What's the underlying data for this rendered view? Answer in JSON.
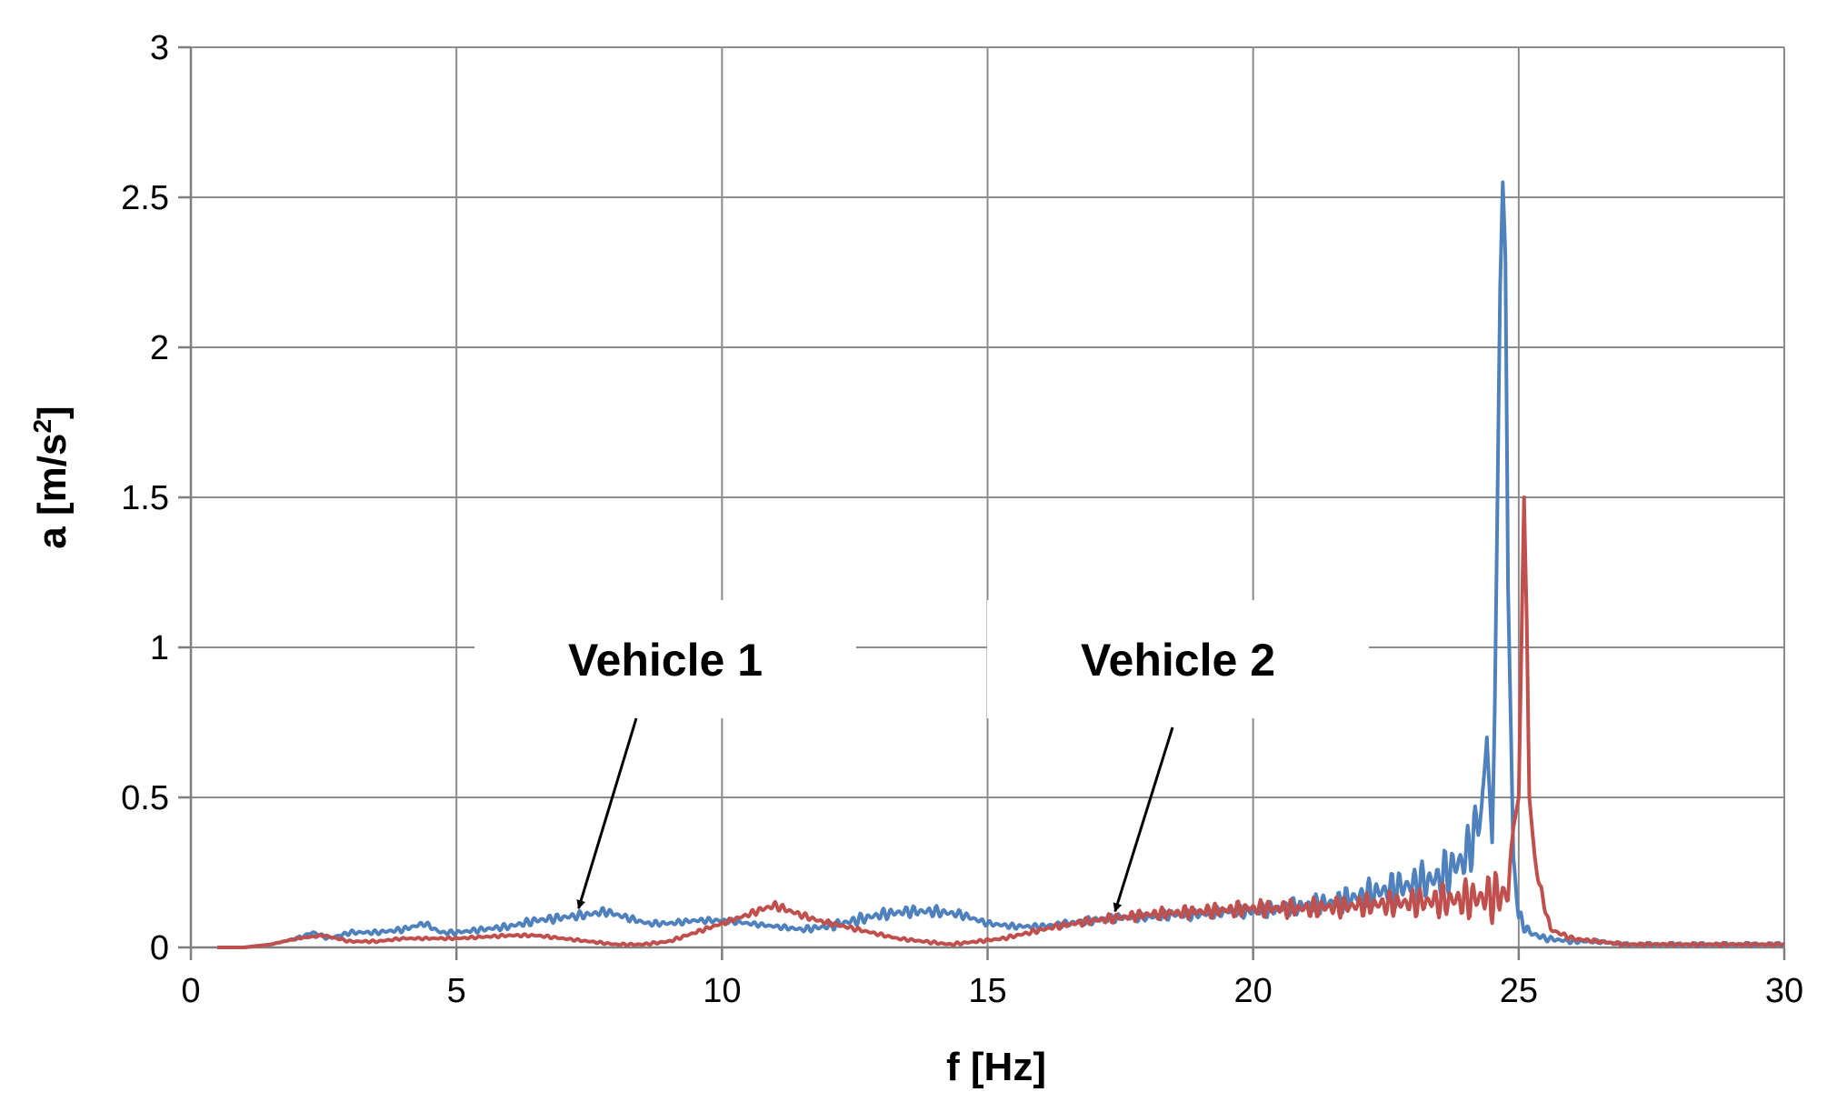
{
  "chart_data": {
    "type": "line",
    "title": "",
    "xlabel": "f [Hz]",
    "ylabel_main": "a [m/s",
    "ylabel_sup": "2",
    "ylabel_tail": "]",
    "xlim": [
      0,
      30
    ],
    "ylim": [
      0,
      3
    ],
    "x_ticks": [
      0,
      5,
      10,
      15,
      20,
      25,
      30
    ],
    "x_tick_labels": [
      "0",
      "5",
      "10",
      "15",
      "20",
      "25",
      "30"
    ],
    "y_ticks": [
      0,
      0.5,
      1,
      1.5,
      2,
      2.5,
      3
    ],
    "y_tick_labels": [
      "0",
      "0.5",
      "1",
      "1.5",
      "2",
      "2.5",
      "3"
    ],
    "grid": true,
    "legend": "none",
    "series": [
      {
        "color": "#4f81bd",
        "x": [
          0.5,
          1.0,
          1.5,
          2.0,
          2.3,
          2.6,
          3.0,
          3.5,
          4.0,
          4.4,
          4.7,
          5.0,
          5.5,
          6.0,
          6.5,
          7.0,
          7.5,
          7.8,
          8.2,
          8.6,
          9.0,
          9.5,
          10.0,
          10.5,
          11.0,
          11.5,
          12.0,
          12.5,
          13.0,
          13.5,
          14.0,
          14.5,
          15.0,
          15.5,
          16.0,
          16.5,
          17.0,
          17.5,
          18.0,
          18.5,
          19.0,
          19.5,
          20.0,
          20.5,
          21.0,
          21.5,
          22.0,
          22.5,
          23.0,
          23.5,
          24.0,
          24.3,
          24.4,
          24.5,
          24.55,
          24.6,
          24.65,
          24.7,
          24.75,
          24.8,
          24.9,
          25.0,
          25.2,
          25.5,
          26.0,
          26.5,
          27.0,
          27.5,
          28.0,
          28.5,
          29.0,
          29.5,
          30.0
        ],
        "y": [
          0.0,
          0.0,
          0.01,
          0.03,
          0.05,
          0.03,
          0.05,
          0.05,
          0.06,
          0.08,
          0.05,
          0.05,
          0.06,
          0.07,
          0.09,
          0.1,
          0.11,
          0.12,
          0.1,
          0.08,
          0.08,
          0.09,
          0.09,
          0.08,
          0.07,
          0.06,
          0.07,
          0.09,
          0.11,
          0.12,
          0.12,
          0.11,
          0.08,
          0.07,
          0.07,
          0.08,
          0.09,
          0.1,
          0.1,
          0.11,
          0.11,
          0.12,
          0.12,
          0.13,
          0.14,
          0.15,
          0.17,
          0.19,
          0.21,
          0.23,
          0.3,
          0.45,
          0.7,
          0.35,
          0.8,
          1.5,
          2.2,
          2.55,
          2.3,
          1.2,
          0.3,
          0.1,
          0.05,
          0.03,
          0.02,
          0.02,
          0.01,
          0.01,
          0.01,
          0.01,
          0.01,
          0.01,
          0.01
        ],
        "amp": [
          0,
          0,
          0,
          0.004,
          0.006,
          0.006,
          0.008,
          0.008,
          0.01,
          0.01,
          0.008,
          0.008,
          0.01,
          0.012,
          0.015,
          0.015,
          0.015,
          0.015,
          0.012,
          0.01,
          0.01,
          0.01,
          0.01,
          0.008,
          0.008,
          0.01,
          0.015,
          0.02,
          0.02,
          0.02,
          0.02,
          0.015,
          0.01,
          0.01,
          0.01,
          0.012,
          0.015,
          0.015,
          0.015,
          0.02,
          0.02,
          0.02,
          0.025,
          0.03,
          0.035,
          0.04,
          0.05,
          0.06,
          0.07,
          0.08,
          0.1,
          0.1,
          0,
          0,
          0,
          0,
          0,
          0,
          0,
          0,
          0,
          0.03,
          0.02,
          0.01,
          0.008,
          0.006,
          0.006,
          0.006,
          0.006,
          0.006,
          0.006,
          0.006,
          0.006
        ]
      },
      {
        "color": "#c0504d",
        "x": [
          0.5,
          1.0,
          1.5,
          2.0,
          2.5,
          3.0,
          3.5,
          4.0,
          5.0,
          6.0,
          6.5,
          7.0,
          7.5,
          8.0,
          8.5,
          9.0,
          9.5,
          10.0,
          10.5,
          10.8,
          11.0,
          11.3,
          11.8,
          12.3,
          12.8,
          13.3,
          13.8,
          14.3,
          14.8,
          15.3,
          15.8,
          16.3,
          17.0,
          18.0,
          19.0,
          20.0,
          21.0,
          22.0,
          23.0,
          24.0,
          24.5,
          24.8,
          24.9,
          25.0,
          25.05,
          25.1,
          25.15,
          25.2,
          25.3,
          25.4,
          25.6,
          26.0,
          26.5,
          27.0,
          28.0,
          29.0,
          30.0
        ],
        "y": [
          0.0,
          0.0,
          0.01,
          0.03,
          0.04,
          0.02,
          0.02,
          0.03,
          0.03,
          0.04,
          0.04,
          0.03,
          0.02,
          0.01,
          0.01,
          0.02,
          0.05,
          0.08,
          0.11,
          0.13,
          0.14,
          0.12,
          0.09,
          0.07,
          0.05,
          0.03,
          0.02,
          0.01,
          0.02,
          0.03,
          0.05,
          0.07,
          0.09,
          0.11,
          0.12,
          0.13,
          0.13,
          0.14,
          0.15,
          0.16,
          0.17,
          0.18,
          0.4,
          0.5,
          1.0,
          1.5,
          1.1,
          0.5,
          0.3,
          0.2,
          0.06,
          0.03,
          0.02,
          0.01,
          0.01,
          0.01,
          0.01
        ],
        "amp": [
          0,
          0,
          0,
          0.003,
          0.004,
          0.004,
          0.004,
          0.004,
          0.004,
          0.005,
          0.005,
          0.004,
          0.004,
          0.004,
          0.004,
          0.005,
          0.006,
          0.008,
          0.01,
          0.015,
          0.015,
          0.012,
          0.01,
          0.008,
          0.006,
          0.005,
          0.005,
          0.005,
          0.005,
          0.006,
          0.008,
          0.01,
          0.015,
          0.02,
          0.025,
          0.03,
          0.035,
          0.04,
          0.05,
          0.07,
          0.09,
          0.1,
          0,
          0,
          0,
          0,
          0,
          0,
          0.02,
          0.02,
          0.01,
          0.008,
          0.006,
          0.006,
          0.006,
          0.006,
          0.006
        ]
      }
    ],
    "annotations": [
      {
        "text": "Vehicle 1",
        "target_x": 7.3,
        "target_y": 0.13
      },
      {
        "text": "Vehicle 2",
        "target_x": 17.4,
        "target_y": 0.12
      }
    ]
  }
}
